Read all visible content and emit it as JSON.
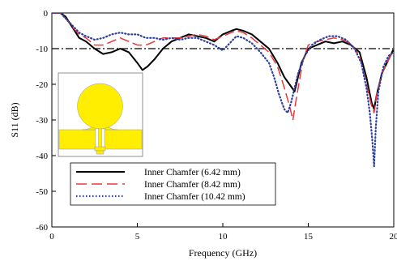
{
  "chart_data": {
    "type": "line",
    "title": "",
    "xlabel": "Frequency (GHz)",
    "ylabel": "S11 (dB)",
    "xlim": [
      0,
      20
    ],
    "ylim": [
      -60,
      0
    ],
    "xticks": [
      "0",
      "5",
      "10",
      "15",
      "20"
    ],
    "yticks": [
      "0",
      "-10",
      "-20",
      "-30",
      "-40",
      "-50",
      "-60"
    ],
    "grid": false,
    "legend_position": "bottom-center",
    "reference_line": {
      "y": -10,
      "style": "dash-dot",
      "color": "#000000"
    },
    "inset": {
      "description": "antenna-geometry",
      "color": "#ffee00"
    },
    "series": [
      {
        "name": "Inner Chamfer (6.42 mm)",
        "color": "#000000",
        "style": "solid",
        "x": [
          0,
          0.5,
          0.8,
          1.2,
          1.6,
          2.0,
          2.5,
          3.0,
          3.5,
          4.0,
          4.5,
          5.0,
          5.3,
          5.6,
          6.0,
          6.5,
          7.0,
          7.5,
          8.0,
          8.5,
          9.0,
          9.5,
          10.0,
          10.5,
          10.8,
          11.2,
          11.7,
          12.2,
          12.7,
          13.2,
          13.6,
          13.9,
          14.2,
          14.6,
          15.0,
          15.5,
          16.0,
          16.5,
          17.0,
          17.5,
          18.0,
          18.4,
          18.7,
          18.85,
          19.0,
          19.3,
          19.7,
          20.0
        ],
        "y": [
          0,
          0,
          -1,
          -4,
          -7,
          -8,
          -10,
          -11.5,
          -11,
          -10,
          -11,
          -14,
          -16,
          -15,
          -13,
          -10,
          -8,
          -7,
          -6,
          -6.5,
          -7,
          -8,
          -6,
          -5,
          -4.5,
          -5,
          -6,
          -8,
          -10,
          -14,
          -18,
          -20,
          -22,
          -14,
          -10,
          -9,
          -8,
          -8.5,
          -8,
          -9,
          -11,
          -18,
          -25,
          -27,
          -23,
          -17,
          -13,
          -10
        ]
      },
      {
        "name": "Inner Chamfer (8.42 mm)",
        "color": "#e8383b",
        "style": "dash",
        "x": [
          0,
          0.5,
          0.8,
          1.2,
          1.6,
          2.0,
          2.5,
          3.0,
          3.5,
          4.0,
          4.5,
          5.0,
          5.5,
          6.0,
          6.5,
          7.0,
          7.5,
          8.0,
          8.5,
          9.0,
          9.5,
          10.0,
          10.5,
          10.8,
          11.2,
          11.7,
          12.2,
          12.7,
          13.2,
          13.6,
          13.9,
          14.1,
          14.3,
          14.7,
          15.0,
          15.5,
          16.0,
          16.5,
          17.0,
          17.5,
          18.0,
          18.4,
          18.7,
          18.85,
          19.0,
          19.3,
          19.7,
          20.0
        ],
        "y": [
          0,
          0,
          -1.5,
          -4,
          -6,
          -7,
          -9,
          -9,
          -8,
          -7,
          -8,
          -9,
          -9,
          -8,
          -7,
          -7,
          -7,
          -6.5,
          -6,
          -6.5,
          -7.5,
          -6.5,
          -5.5,
          -5,
          -5.5,
          -7,
          -9,
          -11,
          -15,
          -21,
          -26,
          -30,
          -24,
          -13,
          -9,
          -8,
          -7.5,
          -7,
          -7.5,
          -8.5,
          -12,
          -20,
          -26,
          -28,
          -23,
          -17,
          -13,
          -10
        ]
      },
      {
        "name": "Inner Chamfer (10.42 mm)",
        "color": "#2e3f9e",
        "style": "dot",
        "x": [
          0,
          0.5,
          0.8,
          1.2,
          1.6,
          2.0,
          2.5,
          3.0,
          3.5,
          4.0,
          4.5,
          5.0,
          5.5,
          6.0,
          6.5,
          7.0,
          7.5,
          8.0,
          8.5,
          9.0,
          9.5,
          10.0,
          10.5,
          10.8,
          11.2,
          11.7,
          12.2,
          12.7,
          13.0,
          13.3,
          13.6,
          13.8,
          14.0,
          14.4,
          14.8,
          15.2,
          15.7,
          16.2,
          16.7,
          17.2,
          17.7,
          18.1,
          18.4,
          18.6,
          18.75,
          18.85,
          18.95,
          19.1,
          19.4,
          19.7,
          20.0
        ],
        "y": [
          0,
          0,
          -1.5,
          -3.5,
          -5.5,
          -6.5,
          -7.5,
          -7,
          -6,
          -5.5,
          -6,
          -6,
          -7,
          -7,
          -7.5,
          -7,
          -7.5,
          -7,
          -7,
          -8,
          -9,
          -10.5,
          -8,
          -6.5,
          -7,
          -8.5,
          -11,
          -14,
          -18,
          -23,
          -27,
          -28,
          -25,
          -17,
          -12,
          -9,
          -7.5,
          -6.5,
          -6.5,
          -7.5,
          -10,
          -14,
          -21,
          -28,
          -36,
          -43,
          -32,
          -22,
          -15,
          -12,
          -11
        ]
      }
    ]
  }
}
